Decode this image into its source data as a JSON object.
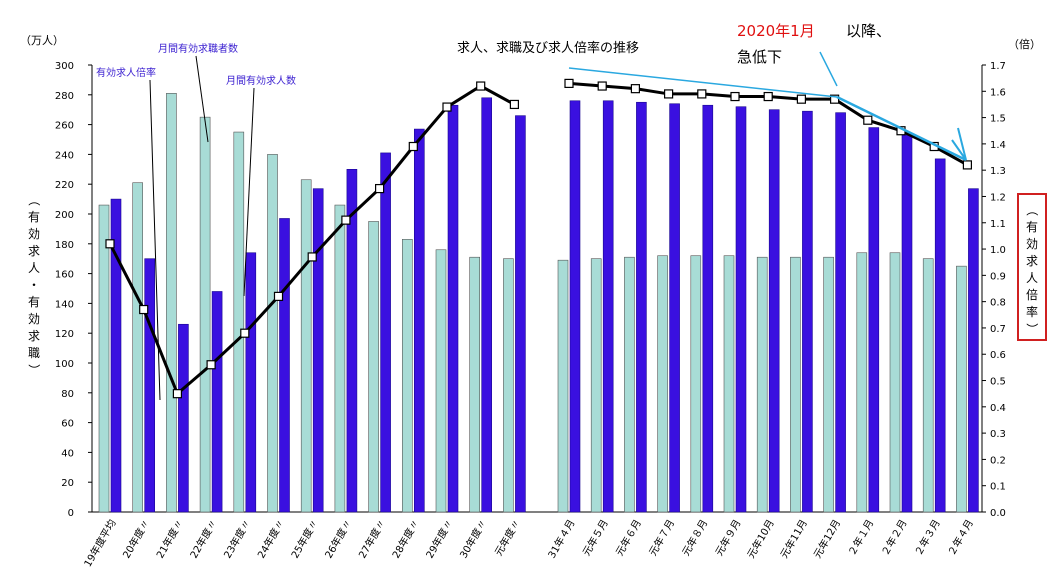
{
  "chart_data": {
    "type": "bar",
    "title": "求人、求職及び求人倍率の推移",
    "left_unit": "（万人）",
    "right_unit": "（倍）",
    "ylabel_left": "（有効求人・有効求職）",
    "ylabel_right": "（有効求人倍率）",
    "ylim_left": [
      0,
      300
    ],
    "ylim_right": [
      0,
      1.7
    ],
    "left_ticks": [
      0,
      20,
      40,
      60,
      80,
      100,
      120,
      140,
      160,
      180,
      200,
      220,
      240,
      260,
      280,
      300
    ],
    "right_ticks": [
      "0.0",
      "0.1",
      "0.2",
      "0.3",
      "0.4",
      "0.5",
      "0.6",
      "0.7",
      "0.8",
      "0.9",
      "1.0",
      "1.1",
      "1.2",
      "1.3",
      "1.4",
      "1.5",
      "1.6",
      "1.7"
    ],
    "categories": [
      "19年度平均",
      "20年度〃",
      "21年度〃",
      "22年度〃",
      "23年度〃",
      "24年度〃",
      "25年度〃",
      "26年度〃",
      "27年度〃",
      "28年度〃",
      "29年度〃",
      "30年度〃",
      "元年度〃",
      "31年４月",
      "元年５月",
      "元年６月",
      "元年７月",
      "元年８月",
      "元年９月",
      "元年10月",
      "元年11月",
      "元年12月",
      "２年１月",
      "２年２月",
      "２年３月",
      "２年４月"
    ],
    "series": [
      {
        "name": "月間有効求職者数",
        "axis": "left",
        "color": "#a8dcd6",
        "values": [
          206,
          221,
          281,
          265,
          255,
          240,
          223,
          206,
          195,
          183,
          176,
          171,
          170,
          169,
          170,
          171,
          172,
          172,
          172,
          171,
          171,
          171,
          174,
          174,
          170,
          165
        ]
      },
      {
        "name": "月間有効求人数",
        "axis": "left",
        "color": "#3a10e0",
        "values": [
          210,
          170,
          126,
          148,
          174,
          197,
          217,
          230,
          241,
          257,
          273,
          278,
          266,
          276,
          276,
          275,
          274,
          273,
          272,
          270,
          269,
          268,
          258,
          253,
          237,
          217
        ]
      },
      {
        "name": "有効求人倍率",
        "axis": "right",
        "color": "#000000",
        "values": [
          1.02,
          0.77,
          0.45,
          0.56,
          0.68,
          0.82,
          0.97,
          1.11,
          1.23,
          1.39,
          1.54,
          1.62,
          1.55,
          1.63,
          1.62,
          1.61,
          1.59,
          1.59,
          1.58,
          1.58,
          1.57,
          1.57,
          1.49,
          1.45,
          1.39,
          1.32
        ]
      }
    ],
    "annotations": {
      "ratio_label": "有効求人倍率",
      "seekers_label": "月間有効求職者数",
      "openings_label": "月間有効求人数",
      "callout_year": "2020年1月",
      "callout_rest": "以降、",
      "callout_line2": "急低下"
    },
    "colors": {
      "callout_red": "#e01010",
      "trend_line": "#2aa8e0",
      "right_box": "#d02020"
    }
  }
}
